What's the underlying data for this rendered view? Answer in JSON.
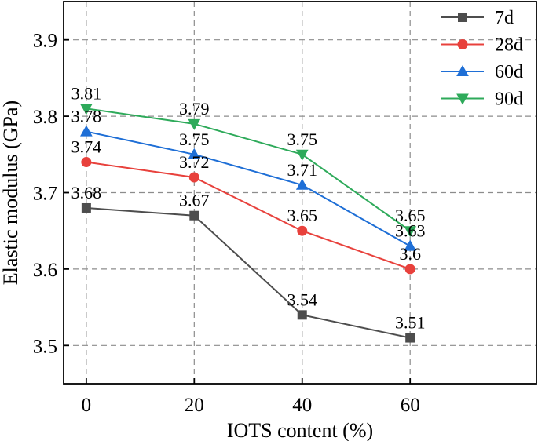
{
  "chart_data": {
    "type": "line",
    "xlabel": "IOTS content (%)",
    "ylabel": "Elastic modulus (GPa)",
    "x": [
      0,
      20,
      40,
      60
    ],
    "xticks": [
      "0",
      "20",
      "40",
      "60"
    ],
    "yticks": [
      "3.5",
      "3.6",
      "3.7",
      "3.8",
      "3.9"
    ],
    "xlim": [
      -4.2,
      83.4
    ],
    "ylim": [
      3.45,
      3.95
    ],
    "grid": true,
    "legend_position": "top-right",
    "series": [
      {
        "name": "7d",
        "values": [
          3.68,
          3.67,
          3.54,
          3.51
        ],
        "labels": [
          "3.68",
          "3.67",
          "3.54",
          "3.51"
        ],
        "color": "#4d4d4d",
        "marker": "square"
      },
      {
        "name": "28d",
        "values": [
          3.74,
          3.72,
          3.65,
          3.6
        ],
        "labels": [
          "3.74",
          "3.72",
          "3.65",
          "3.6"
        ],
        "color": "#e8413c",
        "marker": "circle"
      },
      {
        "name": "60d",
        "values": [
          3.78,
          3.75,
          3.71,
          3.63
        ],
        "labels": [
          "3.78",
          "3.75",
          "3.71",
          "3.63"
        ],
        "color": "#1f6fd6",
        "marker": "triangle-up"
      },
      {
        "name": "90d",
        "values": [
          3.81,
          3.79,
          3.75,
          3.65
        ],
        "labels": [
          "3.81",
          "3.79",
          "3.75",
          "3.65"
        ],
        "color": "#2eaa5a",
        "marker": "triangle-down"
      }
    ]
  }
}
